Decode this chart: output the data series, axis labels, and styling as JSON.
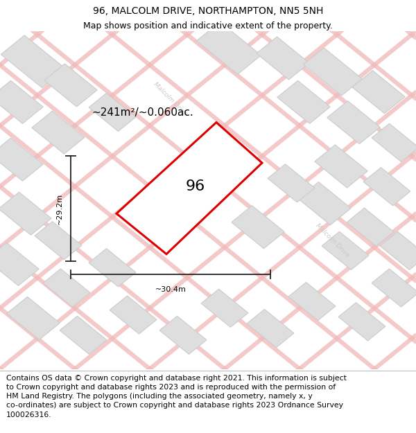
{
  "title": "96, MALCOLM DRIVE, NORTHAMPTON, NN5 5NH",
  "subtitle": "Map shows position and indicative extent of the property.",
  "footer": "Contains OS data © Crown copyright and database right 2021. This information is subject\nto Crown copyright and database rights 2023 and is reproduced with the permission of\nHM Land Registry. The polygons (including the associated geometry, namely x, y\nco-ordinates) are subject to Crown copyright and database rights 2023 Ordnance Survey\n100026316.",
  "area_label": "~241m²/~0.060ac.",
  "width_label": "~30.4m",
  "height_label": "~29.2m",
  "property_number": "96",
  "map_bg": "#f5f5f5",
  "road_color": "#f0b8b8",
  "building_color": "#dedede",
  "building_border": "#cccccc",
  "property_fill": "#ffffff",
  "property_border": "#dd0000",
  "road_label_color": "#c8c8c8",
  "dimension_color": "#222222",
  "title_fontsize": 10,
  "subtitle_fontsize": 9,
  "footer_fontsize": 7.8,
  "area_fontsize": 11,
  "number_fontsize": 16
}
